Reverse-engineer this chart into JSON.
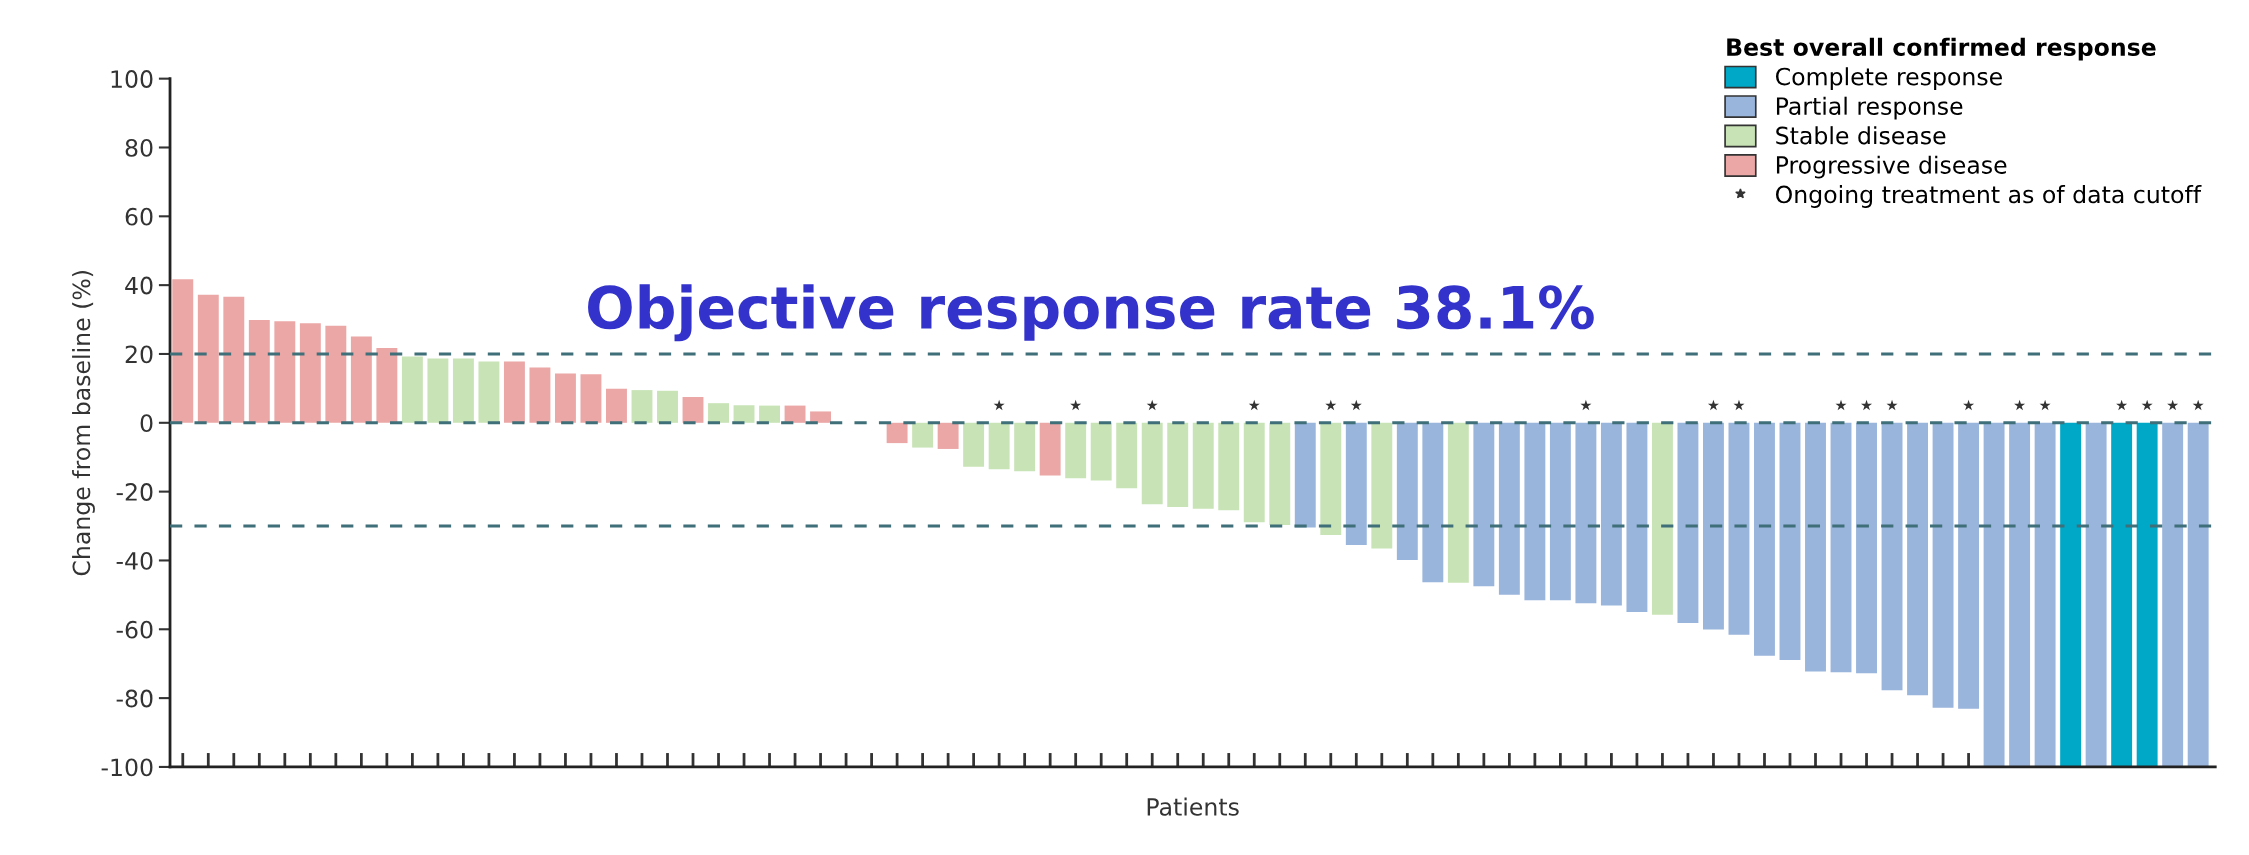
{
  "chart_data": {
    "type": "bar",
    "xlabel": "Patients",
    "ylabel": "Change from baseline (%)",
    "legend_title": "Best overall confirmed response",
    "legend": "top right",
    "annotations": [
      "Objective response rate 38.1%"
    ],
    "categories": [
      null,
      null,
      null,
      null,
      null,
      null,
      null,
      null,
      null,
      null,
      null,
      null,
      null,
      null,
      null,
      null,
      null,
      null,
      null,
      null,
      null,
      null,
      null,
      null,
      null,
      null,
      null,
      null,
      null,
      null,
      null,
      null,
      null,
      null,
      null,
      null,
      null,
      null,
      null,
      null,
      null,
      null,
      null,
      null,
      null,
      null,
      null,
      null,
      null,
      null,
      null,
      null,
      null,
      null,
      null,
      null,
      null,
      null,
      null,
      null,
      null,
      null,
      null,
      null,
      null,
      null,
      null,
      null,
      null,
      null,
      null,
      null,
      null,
      null,
      null,
      null,
      null,
      null,
      null,
      null
    ],
    "ylim": [
      -100,
      100
    ],
    "yticks": [
      -100,
      -80,
      -60,
      -40,
      -20,
      0,
      20,
      40,
      60,
      80,
      100
    ],
    "grid": false,
    "series": [
      {
        "name": "Complete response",
        "color": "#00a8c8",
        "values": [
          null,
          null,
          null,
          null,
          null,
          null,
          null,
          null,
          null,
          null,
          null,
          null,
          null,
          null,
          null,
          null,
          null,
          null,
          null,
          null,
          null,
          null,
          null,
          null,
          null,
          null,
          null,
          null,
          null,
          null,
          null,
          null,
          null,
          null,
          null,
          null,
          null,
          null,
          null,
          null,
          null,
          null,
          null,
          null,
          null,
          null,
          null,
          null,
          null,
          null,
          null,
          null,
          null,
          null,
          null,
          null,
          null,
          null,
          null,
          null,
          null,
          null,
          null,
          null,
          null,
          null,
          null,
          null,
          null,
          null,
          null,
          null,
          null,
          null,
          -100,
          null,
          -100,
          -100,
          null,
          null
        ]
      },
      {
        "name": "Partial response",
        "color": "#9ab5dc",
        "values": [
          null,
          null,
          null,
          null,
          null,
          null,
          null,
          null,
          null,
          null,
          null,
          null,
          null,
          null,
          null,
          null,
          null,
          null,
          null,
          null,
          null,
          null,
          null,
          null,
          null,
          null,
          null,
          null,
          null,
          null,
          null,
          null,
          null,
          null,
          null,
          null,
          null,
          null,
          null,
          null,
          null,
          null,
          null,
          null,
          -30.4,
          null,
          -35.5,
          null,
          -39.9,
          -46.3,
          null,
          -47.5,
          -50,
          -51.6,
          -51.6,
          -52.4,
          -53.1,
          -55,
          null,
          -58.2,
          -60.1,
          -61.6,
          -67.7,
          -68.9,
          -72.3,
          -72.5,
          -72.8,
          -77.7,
          -79.2,
          -82.8,
          -83.1,
          -100,
          -100,
          -100,
          null,
          -100,
          null,
          null,
          -100,
          -100
        ]
      },
      {
        "name": "Stable disease",
        "color": "#c8e3b6",
        "values": [
          null,
          null,
          null,
          null,
          null,
          null,
          null,
          null,
          null,
          19.3,
          18.7,
          18.7,
          17.8,
          null,
          null,
          null,
          null,
          null,
          9.5,
          9.3,
          null,
          5.7,
          5.1,
          5.0,
          null,
          null,
          null,
          null,
          null,
          -7.2,
          null,
          -12.8,
          -13.5,
          -14.1,
          null,
          -16.1,
          -16.8,
          -19,
          -23.7,
          -24.5,
          -25,
          -25.4,
          -28.9,
          -29.7,
          null,
          -32.6,
          null,
          -36.5,
          null,
          null,
          -46.5,
          null,
          null,
          null,
          null,
          null,
          null,
          null,
          -55.8,
          null,
          null,
          null,
          null,
          null,
          null,
          null,
          null,
          null,
          null,
          null,
          null,
          null,
          null,
          null,
          null,
          null,
          null,
          null,
          null,
          null
        ]
      },
      {
        "name": "Progressive disease",
        "color": "#eba6a6",
        "values": [
          41.7,
          37.2,
          36.6,
          29.9,
          29.5,
          28.9,
          28.2,
          25.1,
          21.7,
          null,
          null,
          null,
          null,
          17.8,
          16.1,
          14.3,
          14.1,
          9.9,
          null,
          null,
          7.5,
          null,
          null,
          null,
          5.0,
          3.3,
          0,
          0,
          -5.9,
          null,
          -7.6,
          null,
          null,
          null,
          -15.3,
          null,
          null,
          null,
          null,
          null,
          null,
          null,
          null,
          null,
          null,
          null,
          null,
          null,
          null,
          null,
          null,
          null,
          null,
          null,
          null,
          null,
          null,
          null,
          null,
          null,
          null,
          null,
          null,
          null,
          null,
          null,
          null,
          null,
          null,
          null,
          null,
          null,
          null,
          null,
          null,
          null,
          null,
          null,
          null,
          null
        ]
      },
      {
        "name": "Ongoing treatment as of data cutoff",
        "type": "scatter",
        "marker": "star",
        "color": "#333333",
        "values": [
          null,
          null,
          null,
          null,
          null,
          null,
          null,
          null,
          null,
          null,
          null,
          null,
          null,
          null,
          null,
          null,
          null,
          null,
          null,
          null,
          null,
          null,
          null,
          null,
          null,
          null,
          null,
          null,
          null,
          null,
          null,
          null,
          5,
          null,
          null,
          5,
          null,
          null,
          5,
          null,
          null,
          null,
          5,
          null,
          null,
          5,
          5,
          null,
          null,
          null,
          null,
          null,
          null,
          null,
          null,
          5,
          null,
          null,
          null,
          null,
          5,
          5,
          null,
          null,
          null,
          5,
          5,
          5,
          null,
          null,
          5,
          null,
          5,
          5,
          null,
          null,
          5,
          5,
          5,
          5
        ]
      }
    ],
    "ref_lines": [
      {
        "axis": "y",
        "value": 20,
        "label": null,
        "color": "#3f6f78",
        "line_style": "dashed"
      },
      {
        "axis": "y",
        "value": 0,
        "label": null,
        "color": "#3f6f78",
        "line_style": "dashed"
      },
      {
        "axis": "y",
        "value": -30,
        "label": null,
        "color": "#3f6f78",
        "line_style": "dashed"
      }
    ]
  }
}
